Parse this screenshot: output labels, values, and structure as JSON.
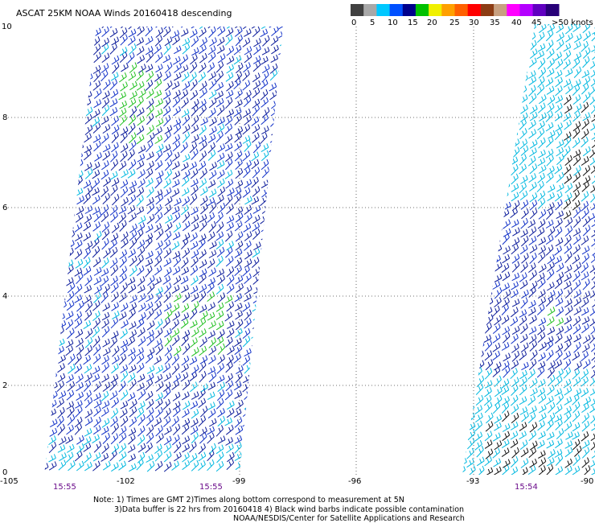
{
  "title": "ASCAT 25KM NOAA Winds 20160418 descending",
  "legend": {
    "colors": [
      "#404040",
      "#a8a8a8",
      "#00c8ff",
      "#0050ff",
      "#00008c",
      "#00c000",
      "#f0f000",
      "#ffa000",
      "#ff6000",
      "#ff0000",
      "#8c3c14",
      "#c8a080",
      "#ff00ff",
      "#b400ff",
      "#6000c0",
      "#280078"
    ],
    "ticks": [
      "0",
      "5",
      "10",
      "15",
      "20",
      "25",
      "30",
      "35",
      "40",
      "45",
      ">50 knots"
    ]
  },
  "latitudes": [
    "10",
    "8",
    "6",
    "4",
    "2",
    "0"
  ],
  "longitudes": [
    "-105",
    "-102",
    "-99",
    "-96",
    "-93",
    "-90"
  ],
  "pass_times": [
    "15:55",
    "15:55",
    "15:54"
  ],
  "notes": [
    "Note: 1) Times are GMT 2)Times along bottom correspond to measurement at 5N",
    "3)Data buffer is 22 hrs from 20160418 4) Black wind barbs indicate possible contamination",
    "NOAA/NESDIS/Center for Satellite Applications and Research"
  ]
}
